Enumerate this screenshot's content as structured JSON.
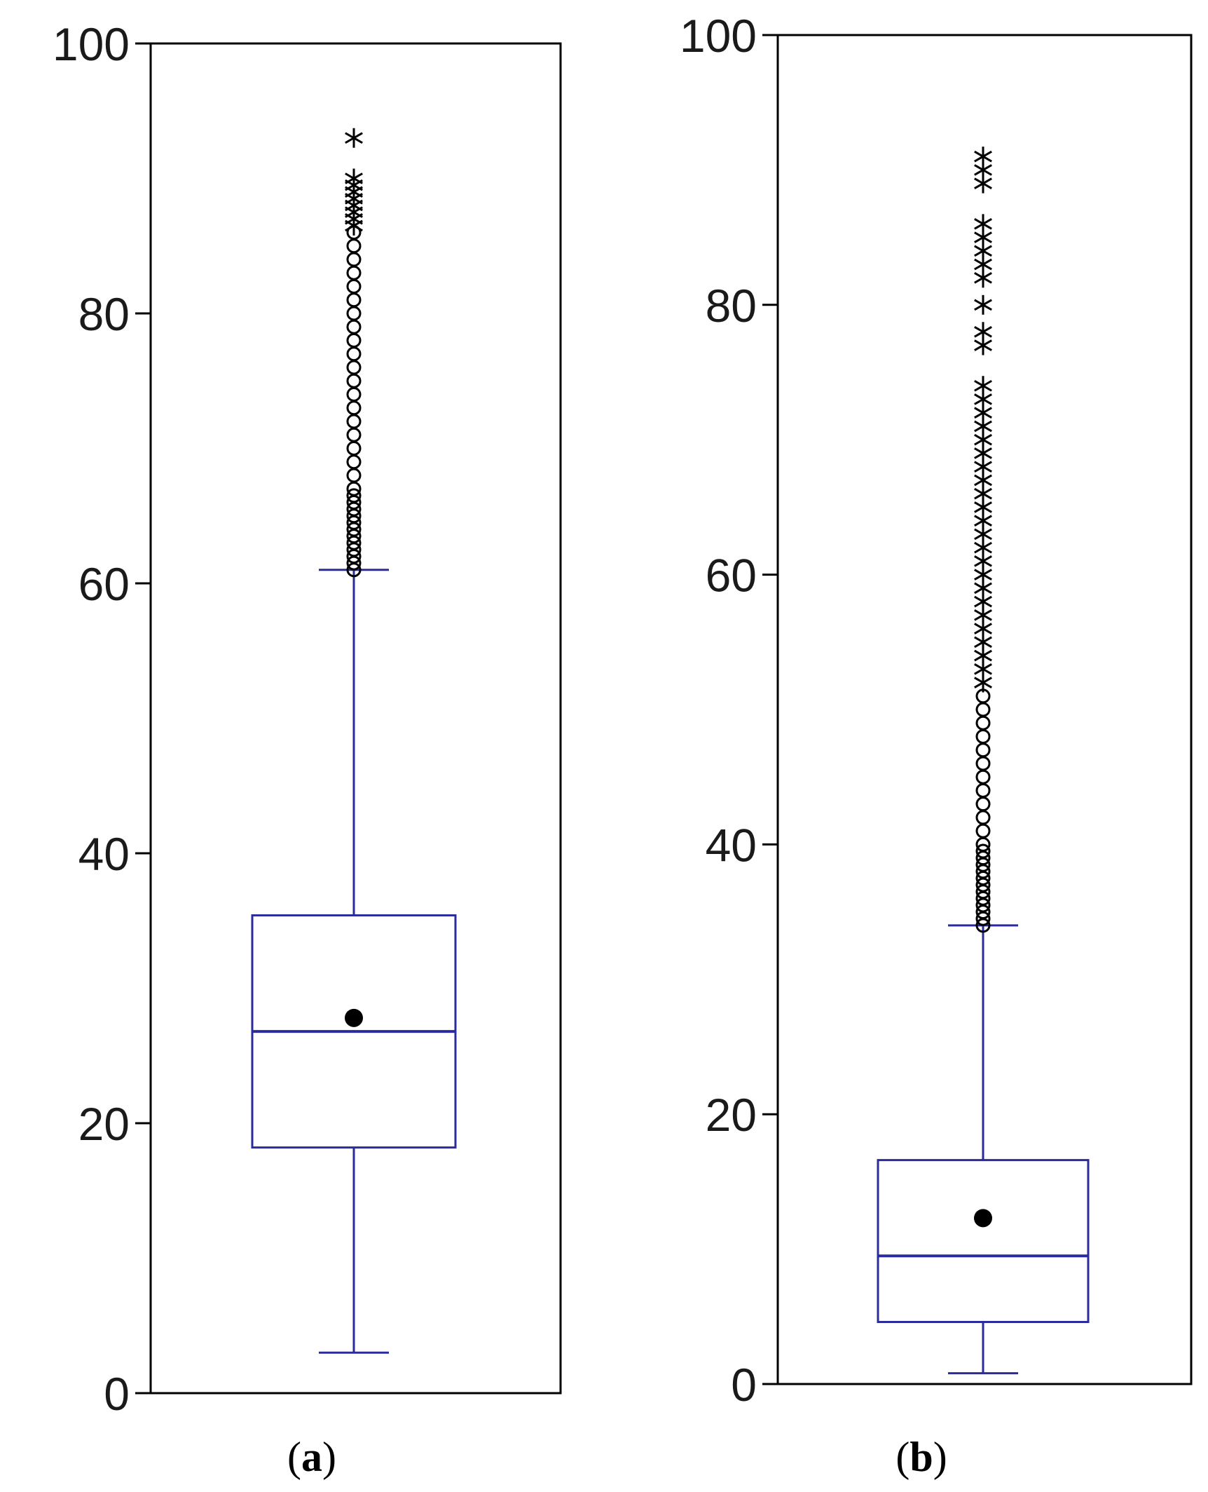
{
  "chart_data": [
    {
      "type": "box",
      "label": "a",
      "ylim": [
        0,
        100
      ],
      "yticks": [
        "0",
        "20",
        "40",
        "60",
        "80",
        "100"
      ],
      "box": {
        "whisker_low": 3,
        "q1": 18.2,
        "median": 26.8,
        "q3": 35.4,
        "whisker_high": 61,
        "mean": 27.8
      },
      "outliers_circle": [
        61,
        61.5,
        62,
        62.5,
        63,
        63.5,
        64,
        64.5,
        65,
        65.5,
        66,
        66.5,
        67,
        68,
        69,
        70,
        71,
        72,
        73,
        74,
        75,
        76,
        77,
        78,
        79,
        80,
        81,
        82,
        83,
        84,
        85,
        86
      ],
      "outliers_star": [
        86.5,
        87,
        87.5,
        88,
        88.5,
        89,
        89.5,
        90,
        93
      ]
    },
    {
      "type": "box",
      "label": "b",
      "ylim": [
        0,
        100
      ],
      "yticks": [
        "0",
        "20",
        "40",
        "60",
        "80",
        "100"
      ],
      "box": {
        "whisker_low": 0.8,
        "q1": 4.6,
        "median": 9.5,
        "q3": 16.6,
        "whisker_high": 34,
        "mean": 12.3
      },
      "outliers_circle": [
        34,
        34.5,
        35,
        35.5,
        36,
        36.5,
        37,
        37.5,
        38,
        38.5,
        39,
        39.5,
        40,
        41,
        42,
        43,
        44,
        45,
        46,
        47,
        48,
        49,
        50,
        51
      ],
      "outliers_star": [
        52,
        53,
        54,
        55,
        56,
        57,
        58,
        59,
        60,
        61,
        62,
        63,
        64,
        65,
        66,
        67,
        68,
        69,
        70,
        71,
        72,
        73,
        74,
        77,
        78,
        80,
        82,
        83,
        84,
        85,
        86,
        89,
        90,
        91
      ]
    }
  ],
  "colors": {
    "box": "#2b2b9c",
    "points": "#000000",
    "axis": "#000000"
  }
}
